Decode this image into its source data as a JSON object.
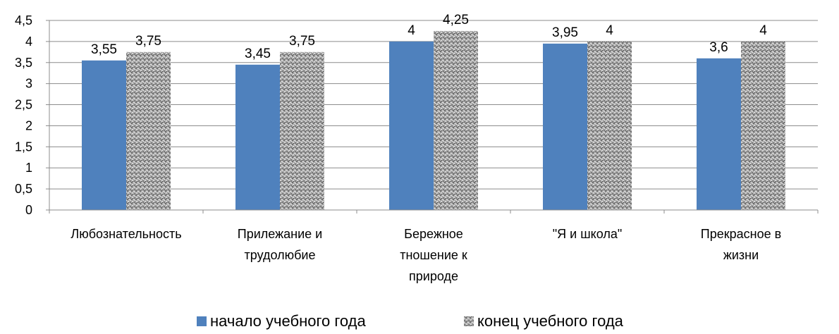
{
  "chart_data": {
    "type": "bar",
    "categories": [
      "Любознательность",
      "Прилежание и трудолюбие",
      "Бережное тношение к природе",
      "\"Я и школа\"",
      "Прекрасное в жизни"
    ],
    "category_lines": [
      [
        "Любознательность"
      ],
      [
        "Прилежание и",
        "трудолюбие"
      ],
      [
        "Бережное",
        "тношение к",
        "природе"
      ],
      [
        "\"Я и школа\""
      ],
      [
        "Прекрасное в",
        "жизни"
      ]
    ],
    "series": [
      {
        "name": "начало учебного года",
        "values": [
          3.55,
          3.45,
          4,
          3.95,
          3.6
        ],
        "labels": [
          "3,55",
          "3,45",
          "4",
          "3,95",
          "3,6"
        ],
        "color": "#4f81bd"
      },
      {
        "name": "конец учебного года",
        "values": [
          3.75,
          3.75,
          4.25,
          4,
          4
        ],
        "labels": [
          "3,75",
          "3,75",
          "4,25",
          "4",
          "4"
        ],
        "color": "#a6a6a6",
        "pattern": "granite"
      }
    ],
    "ylim": [
      0,
      4.5
    ],
    "yticks": [
      0,
      0.5,
      1,
      1.5,
      2,
      2.5,
      3,
      3.5,
      4,
      4.5
    ],
    "ytick_labels": [
      "0",
      "0,5",
      "1",
      "1,5",
      "2",
      "2,5",
      "3",
      "3,5",
      "4",
      "4,5"
    ],
    "grid": true,
    "legend_position": "bottom"
  }
}
